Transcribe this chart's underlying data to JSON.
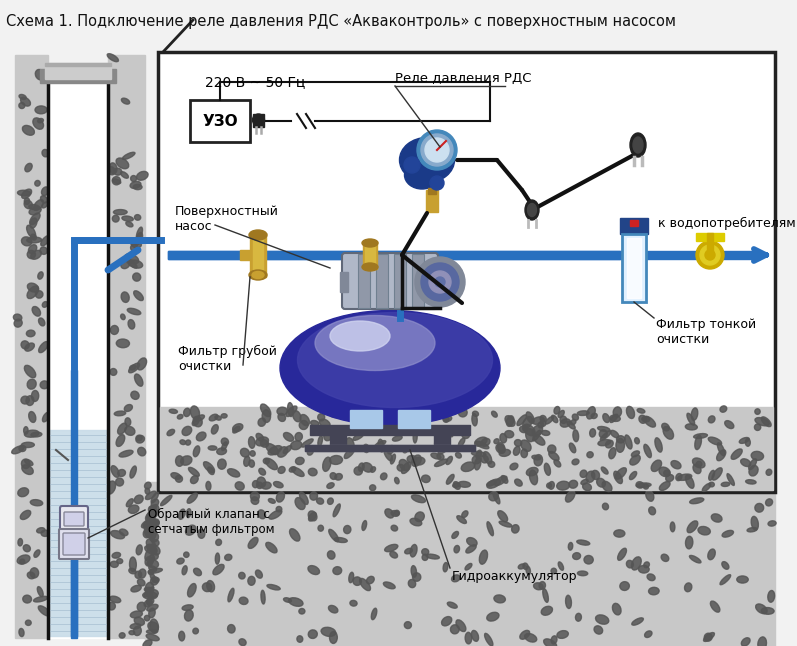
{
  "title": "Схема 1. Подключение реле давления РДС «Акваконтроль» с поверхностным насосом",
  "title_fontsize": 10.5,
  "labels": {
    "voltage": "220 В ~ 50 Гц",
    "uzo": "УЗО",
    "relay": "Реле давления РДС",
    "pump": "Поверхностный\nнасос",
    "coarse_filter": "Фильтр грубой\nочистки",
    "fine_filter": "Фильтр тонкой\nочистки",
    "check_valve": "Обратный клапан с\nсетчатым фильтром",
    "accumulator": "Гидроаккумулятор",
    "consumer": "к водопотребителям"
  },
  "colors": {
    "water_pipe": "#2970bf",
    "electric_wire": "#111111",
    "soil_bg": "#c8c8c8",
    "soil_spot": "#555555",
    "well_water": "#c8dce8",
    "well_water_line": "#a0b8cc",
    "box_border": "#222222",
    "acc_dark": "#28289a",
    "acc_mid": "#5050aa",
    "acc_light": "#a0a0cc",
    "acc_shine": "#c8ccee",
    "relay_body": "#1a4488",
    "relay_face": "#88aacc",
    "relay_inner": "#ddeeff",
    "brass": "#c8a030",
    "brass_dark": "#a07820",
    "pump_silver": "#a8b0be",
    "pump_dark": "#7880a0",
    "plug_dark": "#222222",
    "white": "#ffffff",
    "black": "#111111",
    "gray_line": "#555555",
    "fine_filter_blue": "#2255aa",
    "fine_filter_bowl": "#d8eeff",
    "yellow_valve": "#ddbb00",
    "arrow_col": "#2970bf"
  }
}
